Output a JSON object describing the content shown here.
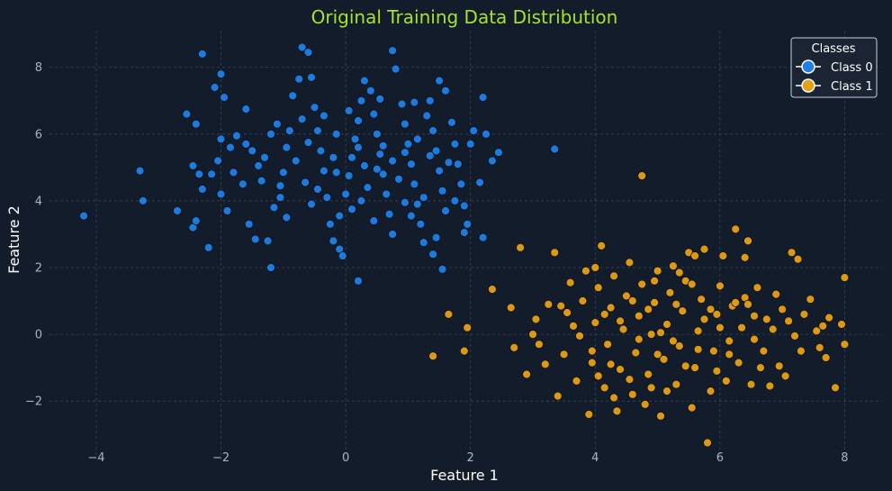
{
  "chart_data": {
    "type": "scatter",
    "title": "Original Training Data Distribution",
    "xlabel": "Feature 1",
    "ylabel": "Feature 2",
    "xlim": [
      -4.75,
      8.6
    ],
    "ylim": [
      -3.75,
      9.1
    ],
    "xticks": [
      -4,
      -2,
      0,
      2,
      4,
      6,
      8
    ],
    "yticks": [
      -2,
      0,
      2,
      4,
      6,
      8
    ],
    "xtick_labels": [
      "−4",
      "−2",
      "0",
      "2",
      "4",
      "6",
      "8"
    ],
    "ytick_labels": [
      "−2",
      "0",
      "2",
      "4",
      "6",
      "8"
    ],
    "grid": true,
    "legend": {
      "title": "Classes",
      "position": "top-right"
    },
    "series": [
      {
        "name": "Class 0",
        "color": "#1f7fe6",
        "points": [
          [
            -4.2,
            3.55
          ],
          [
            -3.3,
            4.9
          ],
          [
            -3.25,
            4.0
          ],
          [
            -2.7,
            3.7
          ],
          [
            -2.45,
            3.2
          ],
          [
            -2.4,
            3.4
          ],
          [
            -2.35,
            4.8
          ],
          [
            -2.4,
            6.3
          ],
          [
            -2.55,
            6.6
          ],
          [
            -2.3,
            8.4
          ],
          [
            -2.1,
            7.4
          ],
          [
            -2.0,
            7.8
          ],
          [
            -1.95,
            7.1
          ],
          [
            -2.05,
            5.2
          ],
          [
            -2.15,
            4.8
          ],
          [
            -2.2,
            2.6
          ],
          [
            -2.0,
            4.2
          ],
          [
            -1.9,
            3.7
          ],
          [
            -2.3,
            4.35
          ],
          [
            -2.45,
            5.05
          ],
          [
            -1.8,
            4.85
          ],
          [
            -1.75,
            5.95
          ],
          [
            -1.6,
            6.75
          ],
          [
            -1.5,
            5.5
          ],
          [
            -1.55,
            3.3
          ],
          [
            -1.45,
            2.85
          ],
          [
            -1.25,
            2.8
          ],
          [
            -1.2,
            2.0
          ],
          [
            -1.15,
            3.8
          ],
          [
            -1.05,
            4.1
          ],
          [
            -1.0,
            4.85
          ],
          [
            -0.95,
            5.6
          ],
          [
            -0.9,
            6.1
          ],
          [
            -0.85,
            7.15
          ],
          [
            -0.75,
            7.65
          ],
          [
            -0.7,
            8.6
          ],
          [
            -0.6,
            8.45
          ],
          [
            -0.55,
            7.7
          ],
          [
            -0.5,
            6.8
          ],
          [
            -0.45,
            6.1
          ],
          [
            -0.4,
            5.5
          ],
          [
            -0.35,
            4.9
          ],
          [
            -0.3,
            4.1
          ],
          [
            -0.25,
            3.3
          ],
          [
            -0.2,
            2.8
          ],
          [
            -0.1,
            3.55
          ],
          [
            0.0,
            4.2
          ],
          [
            0.05,
            4.75
          ],
          [
            0.1,
            5.3
          ],
          [
            0.15,
            5.85
          ],
          [
            0.2,
            6.4
          ],
          [
            0.25,
            7.0
          ],
          [
            0.3,
            7.6
          ],
          [
            0.4,
            7.3
          ],
          [
            0.45,
            6.6
          ],
          [
            0.5,
            6.0
          ],
          [
            0.55,
            5.4
          ],
          [
            0.6,
            4.8
          ],
          [
            0.65,
            4.2
          ],
          [
            0.7,
            3.6
          ],
          [
            0.75,
            3.0
          ],
          [
            0.8,
            7.95
          ],
          [
            0.75,
            8.5
          ],
          [
            0.9,
            6.9
          ],
          [
            0.95,
            6.3
          ],
          [
            1.0,
            5.7
          ],
          [
            1.05,
            5.1
          ],
          [
            1.1,
            4.5
          ],
          [
            1.15,
            3.9
          ],
          [
            1.2,
            3.3
          ],
          [
            1.25,
            2.75
          ],
          [
            1.3,
            6.55
          ],
          [
            1.35,
            7.0
          ],
          [
            1.4,
            6.1
          ],
          [
            1.45,
            5.5
          ],
          [
            1.5,
            4.9
          ],
          [
            1.55,
            4.3
          ],
          [
            1.6,
            3.7
          ],
          [
            1.45,
            2.9
          ],
          [
            1.4,
            2.4
          ],
          [
            1.55,
            1.95
          ],
          [
            1.5,
            7.6
          ],
          [
            1.6,
            7.3
          ],
          [
            1.7,
            6.35
          ],
          [
            1.75,
            5.7
          ],
          [
            1.8,
            5.1
          ],
          [
            1.85,
            4.5
          ],
          [
            1.9,
            3.85
          ],
          [
            1.95,
            3.3
          ],
          [
            1.9,
            3.05
          ],
          [
            2.0,
            5.7
          ],
          [
            2.05,
            6.1
          ],
          [
            2.15,
            4.55
          ],
          [
            2.2,
            7.1
          ],
          [
            2.25,
            6.0
          ],
          [
            2.35,
            5.2
          ],
          [
            2.45,
            5.45
          ],
          [
            2.2,
            2.9
          ],
          [
            3.35,
            5.55
          ],
          [
            0.2,
            1.6
          ],
          [
            -0.1,
            2.55
          ],
          [
            -0.05,
            2.35
          ],
          [
            -1.3,
            5.3
          ],
          [
            -1.1,
            6.3
          ],
          [
            -0.8,
            5.2
          ],
          [
            -0.65,
            4.55
          ],
          [
            -0.15,
            6.0
          ],
          [
            0.3,
            5.05
          ],
          [
            0.35,
            4.4
          ],
          [
            0.6,
            5.65
          ],
          [
            0.85,
            4.65
          ],
          [
            1.15,
            5.85
          ],
          [
            -1.6,
            5.7
          ],
          [
            -1.35,
            4.6
          ],
          [
            -0.95,
            3.5
          ],
          [
            -0.55,
            3.9
          ],
          [
            -0.2,
            5.3
          ],
          [
            0.1,
            3.75
          ],
          [
            0.45,
            3.4
          ],
          [
            0.95,
            3.95
          ],
          [
            1.25,
            4.1
          ],
          [
            1.65,
            5.15
          ],
          [
            -1.85,
            5.6
          ],
          [
            -2.0,
            5.85
          ],
          [
            -0.35,
            6.55
          ],
          [
            0.05,
            6.7
          ],
          [
            0.55,
            7.05
          ],
          [
            1.1,
            6.95
          ],
          [
            -0.7,
            6.45
          ],
          [
            -1.2,
            6.0
          ],
          [
            -1.65,
            4.5
          ],
          [
            -0.45,
            4.35
          ],
          [
            0.25,
            4.0
          ],
          [
            0.75,
            5.2
          ],
          [
            1.35,
            5.35
          ],
          [
            1.75,
            4.0
          ],
          [
            -1.05,
            4.45
          ],
          [
            -0.15,
            4.85
          ],
          [
            0.5,
            4.95
          ],
          [
            0.95,
            5.45
          ],
          [
            -0.6,
            5.75
          ],
          [
            0.2,
            5.6
          ],
          [
            -1.4,
            5.05
          ],
          [
            1.05,
            3.55
          ]
        ]
      },
      {
        "name": "Class 1",
        "color": "#e8a013",
        "points": [
          [
            1.4,
            -0.65
          ],
          [
            1.65,
            0.6
          ],
          [
            1.9,
            -0.5
          ],
          [
            1.95,
            0.2
          ],
          [
            2.35,
            1.35
          ],
          [
            2.8,
            2.6
          ],
          [
            2.65,
            0.8
          ],
          [
            2.7,
            -0.4
          ],
          [
            2.9,
            -1.2
          ],
          [
            3.05,
            0.45
          ],
          [
            3.1,
            -0.3
          ],
          [
            3.25,
            0.9
          ],
          [
            3.35,
            2.45
          ],
          [
            3.4,
            -1.85
          ],
          [
            3.5,
            -0.6
          ],
          [
            3.55,
            0.65
          ],
          [
            3.6,
            1.55
          ],
          [
            3.7,
            -1.4
          ],
          [
            3.75,
            -0.05
          ],
          [
            3.8,
            1.0
          ],
          [
            3.85,
            1.9
          ],
          [
            3.9,
            -2.4
          ],
          [
            3.95,
            -0.85
          ],
          [
            4.0,
            0.35
          ],
          [
            4.05,
            1.4
          ],
          [
            4.1,
            2.65
          ],
          [
            4.15,
            -1.6
          ],
          [
            4.2,
            -0.3
          ],
          [
            4.25,
            0.8
          ],
          [
            4.3,
            1.75
          ],
          [
            4.35,
            -2.3
          ],
          [
            4.4,
            -1.05
          ],
          [
            4.45,
            0.15
          ],
          [
            4.5,
            1.15
          ],
          [
            4.55,
            2.15
          ],
          [
            4.6,
            -1.8
          ],
          [
            4.65,
            -0.55
          ],
          [
            4.7,
            0.55
          ],
          [
            4.75,
            1.5
          ],
          [
            4.8,
            -2.1
          ],
          [
            4.85,
            -1.2
          ],
          [
            4.9,
            0.0
          ],
          [
            4.95,
            0.95
          ],
          [
            5.0,
            1.9
          ],
          [
            5.05,
            -2.45
          ],
          [
            5.1,
            -0.75
          ],
          [
            5.15,
            0.3
          ],
          [
            5.2,
            1.25
          ],
          [
            5.25,
            2.05
          ],
          [
            5.3,
            -1.5
          ],
          [
            5.35,
            -0.35
          ],
          [
            5.4,
            0.7
          ],
          [
            5.45,
            1.6
          ],
          [
            5.5,
            2.45
          ],
          [
            5.55,
            -2.2
          ],
          [
            5.6,
            -1.0
          ],
          [
            5.65,
            0.1
          ],
          [
            5.7,
            1.05
          ],
          [
            5.75,
            2.55
          ],
          [
            5.8,
            -3.25
          ],
          [
            5.85,
            -1.7
          ],
          [
            5.9,
            -0.5
          ],
          [
            5.95,
            0.6
          ],
          [
            6.0,
            1.45
          ],
          [
            6.05,
            2.35
          ],
          [
            6.1,
            -1.4
          ],
          [
            6.15,
            -0.2
          ],
          [
            6.2,
            0.85
          ],
          [
            6.25,
            3.15
          ],
          [
            6.3,
            -0.85
          ],
          [
            6.35,
            0.2
          ],
          [
            6.4,
            1.1
          ],
          [
            6.45,
            2.8
          ],
          [
            6.5,
            -1.5
          ],
          [
            6.55,
            0.55
          ],
          [
            6.6,
            1.4
          ],
          [
            6.7,
            -0.5
          ],
          [
            6.8,
            -1.55
          ],
          [
            6.85,
            0.15
          ],
          [
            6.9,
            1.2
          ],
          [
            6.95,
            -0.95
          ],
          [
            7.0,
            0.75
          ],
          [
            7.05,
            -1.25
          ],
          [
            7.15,
            2.45
          ],
          [
            7.2,
            -0.05
          ],
          [
            7.25,
            2.25
          ],
          [
            7.3,
            -0.5
          ],
          [
            7.35,
            0.6
          ],
          [
            7.45,
            1.05
          ],
          [
            7.55,
            0.1
          ],
          [
            7.6,
            -0.4
          ],
          [
            7.7,
            -0.7
          ],
          [
            7.75,
            0.5
          ],
          [
            7.85,
            -1.6
          ],
          [
            7.95,
            0.3
          ],
          [
            8.0,
            1.7
          ],
          [
            8.0,
            -0.3
          ],
          [
            4.75,
            4.75
          ],
          [
            4.0,
            2.0
          ],
          [
            3.2,
            -0.9
          ],
          [
            5.6,
            2.35
          ],
          [
            6.4,
            2.3
          ],
          [
            5.0,
            -0.6
          ],
          [
            5.3,
            0.9
          ],
          [
            4.4,
            0.4
          ],
          [
            6.0,
            0.2
          ],
          [
            4.7,
            -0.15
          ],
          [
            5.75,
            0.45
          ],
          [
            4.15,
            0.6
          ],
          [
            5.45,
            -0.95
          ],
          [
            6.25,
            0.95
          ],
          [
            4.55,
            -1.35
          ],
          [
            5.15,
            -1.7
          ],
          [
            6.55,
            -0.15
          ],
          [
            3.65,
            0.25
          ],
          [
            4.95,
            1.6
          ],
          [
            5.95,
            -1.1
          ],
          [
            4.25,
            -0.9
          ],
          [
            5.55,
            1.5
          ],
          [
            6.75,
            0.45
          ],
          [
            4.85,
            0.75
          ],
          [
            5.25,
            -0.2
          ],
          [
            3.95,
            -0.5
          ],
          [
            6.15,
            -0.6
          ],
          [
            4.6,
            1.0
          ],
          [
            5.85,
            0.75
          ],
          [
            3.45,
            0.85
          ],
          [
            7.1,
            0.4
          ],
          [
            4.3,
            -1.9
          ],
          [
            5.05,
            0.05
          ],
          [
            5.65,
            -0.45
          ],
          [
            6.45,
            0.9
          ],
          [
            3.0,
            0.0
          ],
          [
            7.65,
            0.25
          ],
          [
            4.05,
            -1.25
          ],
          [
            5.35,
            1.85
          ],
          [
            6.65,
            -1.0
          ],
          [
            4.9,
            -1.6
          ]
        ]
      }
    ]
  }
}
